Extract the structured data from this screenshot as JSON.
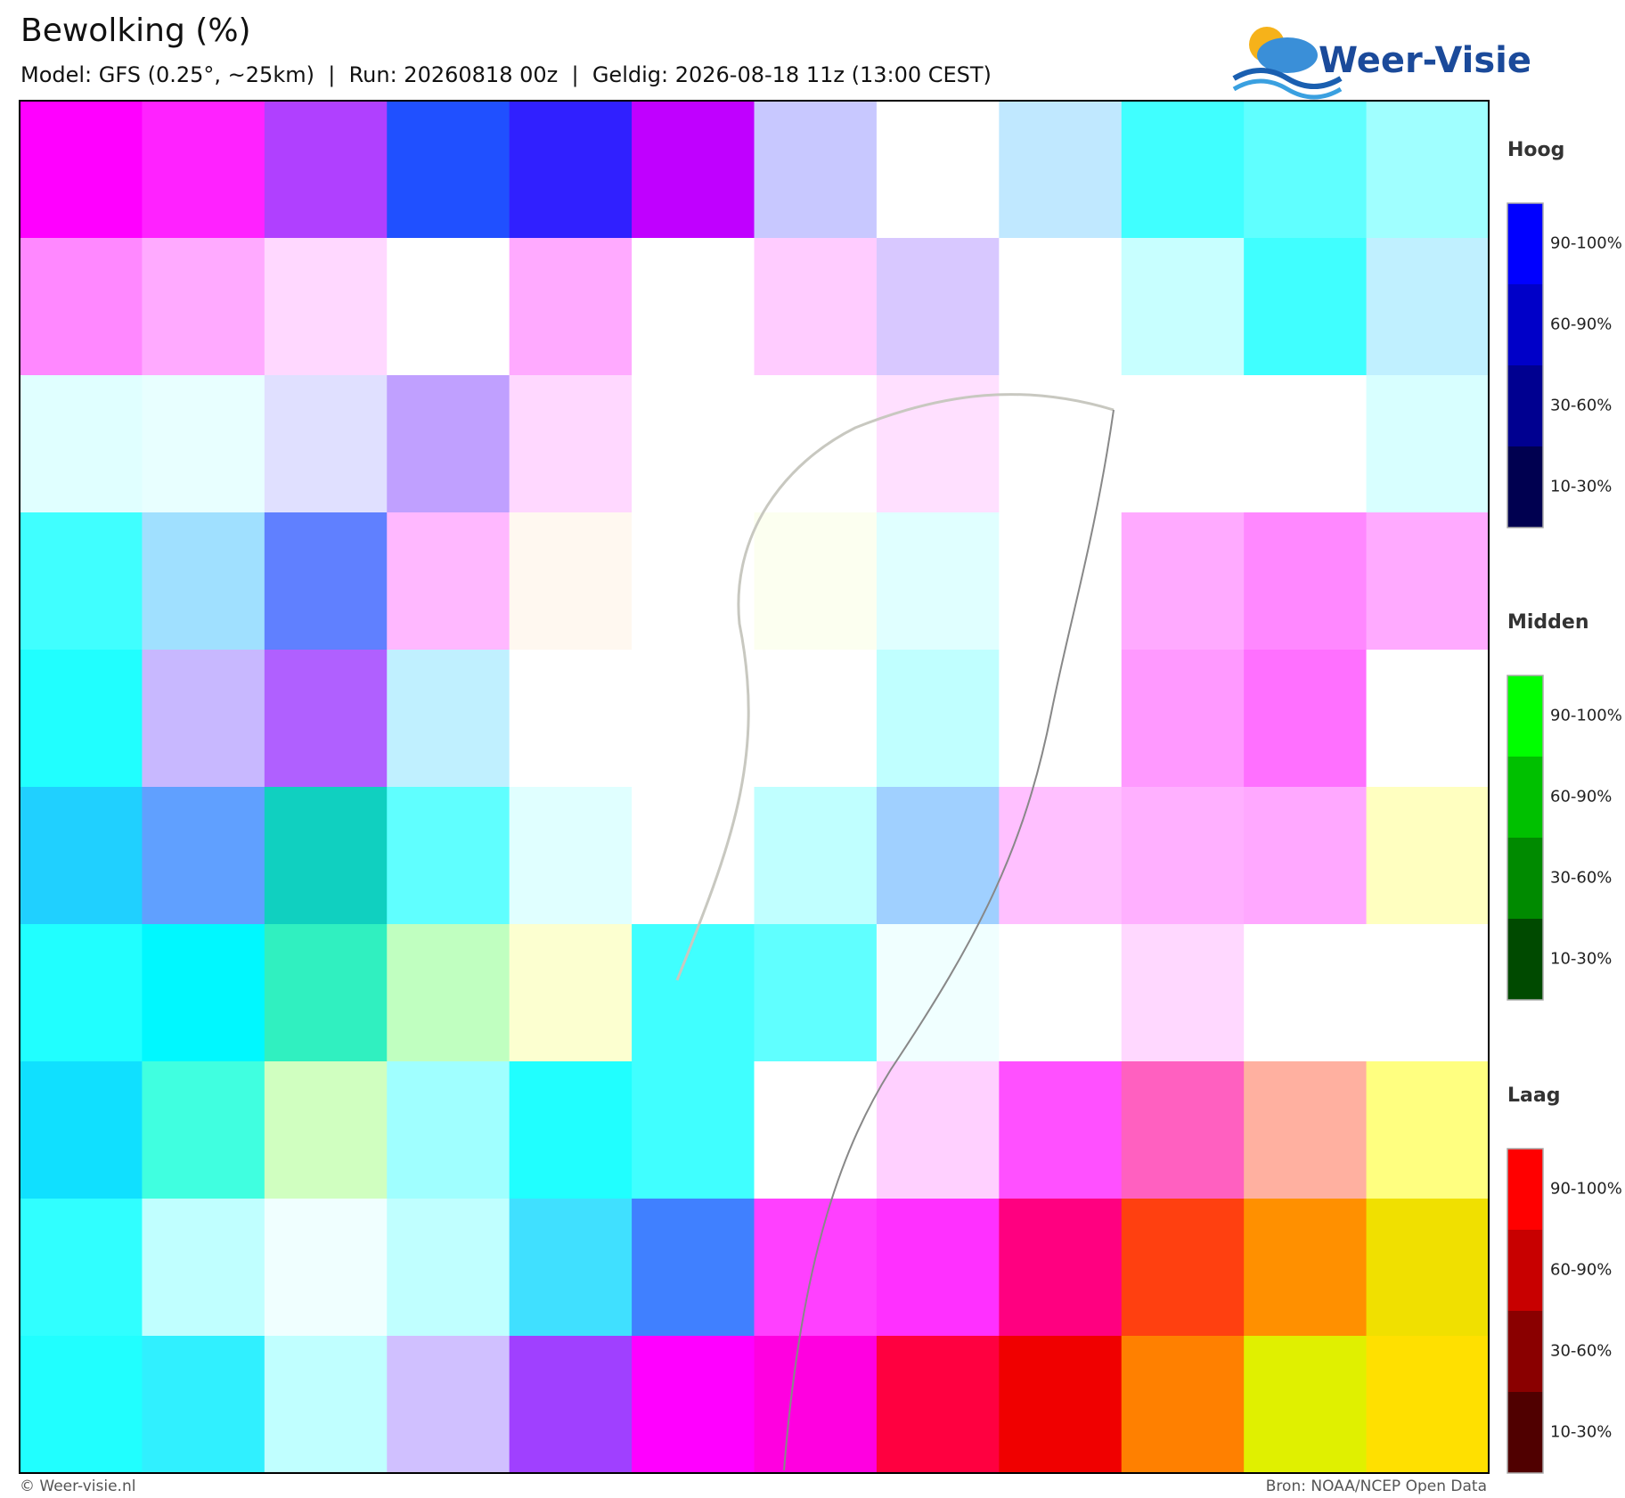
{
  "header": {
    "title": "Bewolking (%)",
    "subtitle": "Model: GFS (0.25°, ~25km)  |  Run: 20260818 00z  |  Geldig: 2026-08-18 11z (13:00 CEST)",
    "logo": "Weer-Visie"
  },
  "legend": [
    {
      "title": "Hoog",
      "labels": [
        "90-100%",
        "60-90%",
        "30-60%",
        "10-30%"
      ]
    },
    {
      "title": "Midden",
      "labels": [
        "90-100%",
        "60-90%",
        "30-60%",
        "10-30%"
      ]
    },
    {
      "title": "Laag",
      "labels": [
        "90-100%",
        "60-90%",
        "30-60%",
        "10-30%"
      ]
    }
  ],
  "footer": {
    "left": "© Weer-visie.nl",
    "right": "Bron: NOAA/NCEP Open Data"
  }
}
